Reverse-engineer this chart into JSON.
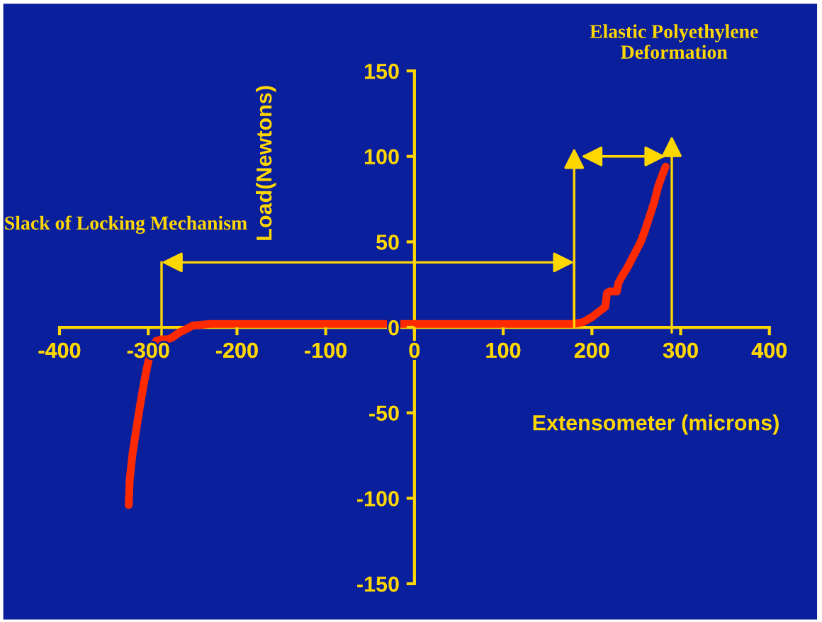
{
  "chart_data": {
    "type": "line",
    "xlabel": "Extensometer (microns)",
    "ylabel": "Load(Newtons)",
    "x": [
      -322,
      -321,
      -318,
      -313,
      -309,
      -305,
      -300,
      -296,
      -291,
      -285,
      -278,
      -273,
      -265,
      -257,
      -250,
      -230,
      -200,
      -100,
      0,
      100,
      175,
      180,
      190,
      200,
      210,
      215,
      217,
      220,
      228,
      230,
      234,
      240,
      245,
      250,
      255,
      260,
      265,
      270,
      275,
      280,
      283
    ],
    "series": [
      {
        "color": "#ff2a00",
        "values": [
          -104,
          -90,
          -75,
          -58,
          -45,
          -33,
          -20,
          -12,
          -8,
          -7,
          -7,
          -6,
          -3,
          -1,
          1,
          2,
          2,
          2,
          2,
          2,
          2,
          2,
          3,
          6,
          10,
          12,
          20,
          21,
          21,
          26,
          30,
          35,
          40,
          45,
          50,
          57,
          65,
          73,
          83,
          90,
          94
        ]
      }
    ],
    "xlim": [
      -400,
      400
    ],
    "ylim": [
      -150,
      150
    ],
    "xticks": [
      -400,
      -300,
      -200,
      -100,
      0,
      100,
      200,
      300,
      400
    ],
    "yticks": [
      -150,
      -100,
      -50,
      0,
      50,
      100,
      150
    ],
    "grid": false,
    "legend": false,
    "marker": "none",
    "line_style": "solid",
    "annotations": [
      "Slack of Locking Mechanism",
      "Elastic Polyethylene\nDeformation"
    ]
  }
}
